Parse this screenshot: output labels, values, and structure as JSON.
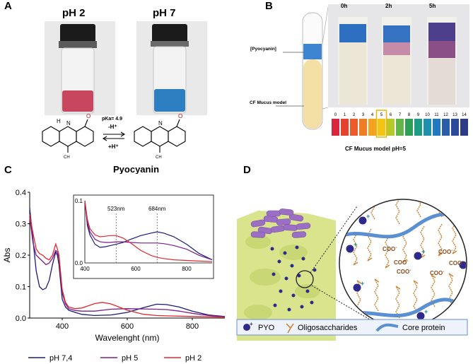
{
  "panelA": {
    "letter": "A",
    "label_ph2": "pH 2",
    "label_ph7": "pH 7",
    "pka": "pKa= 4.9",
    "minus_h": "-H⁺",
    "plus_h": "+H⁺",
    "compound": "Pyocyanin",
    "atoms": {
      "n": "N",
      "h": "H",
      "o": "O",
      "ch3": "CH",
      "sub3": "3"
    },
    "colors": {
      "ph2_liquid": "#c8475e",
      "ph7_liquid": "#2d7fc1"
    }
  },
  "panelB": {
    "letter": "B",
    "times": [
      "0h",
      "2h",
      "5h"
    ],
    "pyocyanin_label": "[Pyocyanin]",
    "mucus_label": "CF Mucus model",
    "scale_caption": "CF Mucus model pH=5",
    "ph_scale": [
      "0",
      "1",
      "2",
      "3",
      "4",
      "5",
      "6",
      "7",
      "8",
      "9",
      "10",
      "11",
      "12",
      "13",
      "14"
    ],
    "ph_colors": [
      "#d7263d",
      "#e4412e",
      "#ee5b2b",
      "#f07c24",
      "#f5a21e",
      "#f2c515",
      "#b7c92a",
      "#63b54a",
      "#2f9f57",
      "#1e9b83",
      "#1f8fb0",
      "#2279c0",
      "#2b5ea8",
      "#2b4a98",
      "#2d3b87"
    ],
    "highlight_index": 5
  },
  "panelC": {
    "letter": "C",
    "chart_data": {
      "type": "line",
      "xlabel": "Wavelenght (nm)",
      "ylabel": "Abs",
      "xlim": [
        300,
        900
      ],
      "ylim": [
        0,
        0.4
      ],
      "xticks": [
        400,
        600,
        800
      ],
      "yticks": [
        0,
        0.1,
        0.2,
        0.3,
        0.4
      ],
      "ytick_labels": [
        "0.0",
        "0.1",
        "0.2",
        "0.3",
        "0.4"
      ],
      "legend_position": "bottom",
      "series": [
        {
          "name": "pH 7,4",
          "color": "#1a1a7a",
          "x": [
            300,
            310,
            320,
            330,
            340,
            350,
            360,
            370,
            380,
            385,
            390,
            400,
            410,
            420,
            440,
            460,
            500,
            550,
            600,
            650,
            690,
            720,
            760,
            800,
            850,
            900
          ],
          "y": [
            0.35,
            0.25,
            0.15,
            0.1,
            0.09,
            0.095,
            0.12,
            0.17,
            0.21,
            0.2,
            0.17,
            0.06,
            0.035,
            0.025,
            0.018,
            0.012,
            0.008,
            0.01,
            0.018,
            0.033,
            0.044,
            0.043,
            0.035,
            0.022,
            0.01,
            0.005
          ]
        },
        {
          "name": "pH 5",
          "color": "#7b1f8a",
          "x": [
            300,
            310,
            320,
            330,
            340,
            350,
            360,
            370,
            380,
            385,
            390,
            400,
            410,
            420,
            440,
            460,
            500,
            550,
            600,
            650,
            690,
            720,
            760,
            800,
            850,
            900
          ],
          "y": [
            0.32,
            0.24,
            0.2,
            0.19,
            0.18,
            0.17,
            0.175,
            0.19,
            0.215,
            0.21,
            0.19,
            0.08,
            0.045,
            0.03,
            0.024,
            0.022,
            0.022,
            0.028,
            0.03,
            0.029,
            0.028,
            0.027,
            0.022,
            0.015,
            0.008,
            0.004
          ]
        },
        {
          "name": "pH 2",
          "color": "#e0282e",
          "x": [
            300,
            310,
            320,
            330,
            340,
            350,
            360,
            370,
            380,
            385,
            390,
            400,
            410,
            420,
            440,
            460,
            500,
            523,
            550,
            600,
            650,
            690,
            720,
            760,
            800,
            850,
            900
          ],
          "y": [
            0.33,
            0.27,
            0.22,
            0.205,
            0.2,
            0.19,
            0.185,
            0.2,
            0.235,
            0.22,
            0.2,
            0.09,
            0.05,
            0.035,
            0.03,
            0.032,
            0.046,
            0.05,
            0.045,
            0.025,
            0.012,
            0.008,
            0.007,
            0.006,
            0.005,
            0.004,
            0.003
          ]
        }
      ],
      "inset": {
        "xlim": [
          400,
          900
        ],
        "ylim": [
          0,
          0.1
        ],
        "xticks": [
          400,
          600,
          800
        ],
        "yticks": [
          0,
          0.1
        ],
        "ytick_labels": [
          "0.0",
          "0.1"
        ],
        "annotations": [
          {
            "x": 523,
            "label": "523nm"
          },
          {
            "x": 684,
            "label": "684nm"
          }
        ],
        "series": [
          {
            "name": "pH 7,4",
            "x": [
              400,
              410,
              420,
              440,
              460,
              480,
              500,
              523,
              550,
              580,
              620,
              660,
              684,
              710,
              750,
              800,
              850,
              900
            ],
            "y": [
              0.1,
              0.06,
              0.045,
              0.03,
              0.025,
              0.026,
              0.028,
              0.03,
              0.033,
              0.038,
              0.044,
              0.048,
              0.05,
              0.048,
              0.042,
              0.03,
              0.015,
              0.005
            ]
          },
          {
            "name": "pH 5",
            "x": [
              400,
              410,
              420,
              440,
              460,
              480,
              500,
              523,
              550,
              580,
              620,
              660,
              684,
              710,
              750,
              800,
              850,
              900
            ],
            "y": [
              0.1,
              0.065,
              0.05,
              0.038,
              0.034,
              0.033,
              0.033,
              0.034,
              0.034,
              0.033,
              0.032,
              0.032,
              0.032,
              0.031,
              0.028,
              0.022,
              0.012,
              0.005
            ]
          },
          {
            "name": "pH 2",
            "x": [
              400,
              410,
              420,
              440,
              460,
              480,
              500,
              523,
              550,
              580,
              620,
              660,
              684,
              710,
              750,
              800,
              850,
              900
            ],
            "y": [
              0.1,
              0.07,
              0.055,
              0.045,
              0.042,
              0.043,
              0.044,
              0.044,
              0.04,
              0.032,
              0.02,
              0.012,
              0.009,
              0.007,
              0.005,
              0.004,
              0.003,
              0.002
            ]
          }
        ]
      }
    }
  },
  "panelD": {
    "letter": "D",
    "coo_label": "COO",
    "coo_sup": "-",
    "plus_sign": "+",
    "legend": {
      "pyo": "PYO",
      "oligo": "Oligosaccharides",
      "core": "Core protein"
    },
    "colors": {
      "pyo": "#2e2a8c",
      "oligo": "#c9893a",
      "core": "#5a8fd1",
      "tissue": "#d9e48c",
      "bacteria": "#9b6fc4"
    }
  }
}
